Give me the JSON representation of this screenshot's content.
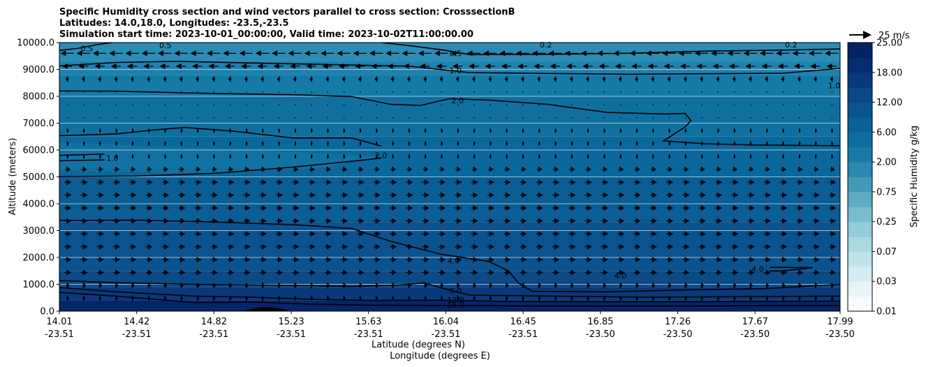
{
  "chart_data": {
    "type": "heatmap",
    "title_lines": [
      "Specific Humidity cross section and wind vectors parallel to cross section: CrosssectionB",
      "Latitudes: 14.0,18.0, Longitudes: -23.5,-23.5",
      "Simulation start time: 2023-10-01_00:00:00, Valid time: 2023-10-02T11:00:00.00"
    ],
    "ylabel": "Altitude (meters)",
    "xlabel_lines": [
      "Latitude (degrees N)",
      "Longitude (degrees E)"
    ],
    "ylim": [
      0,
      10000
    ],
    "y_ticks": [
      "0.0",
      "1000.0",
      "2000.0",
      "3000.0",
      "4000.0",
      "5000.0",
      "6000.0",
      "7000.0",
      "8000.0",
      "9000.0",
      "10000.0"
    ],
    "x_ticks": [
      {
        "lat": "14.01",
        "lon": "-23.51"
      },
      {
        "lat": "14.42",
        "lon": "-23.51"
      },
      {
        "lat": "14.82",
        "lon": "-23.51"
      },
      {
        "lat": "15.23",
        "lon": "-23.51"
      },
      {
        "lat": "15.63",
        "lon": "-23.51"
      },
      {
        "lat": "16.04",
        "lon": "-23.51"
      },
      {
        "lat": "16.45",
        "lon": "-23.51"
      },
      {
        "lat": "16.85",
        "lon": "-23.50"
      },
      {
        "lat": "17.26",
        "lon": "-23.50"
      },
      {
        "lat": "17.67",
        "lon": "-23.50"
      },
      {
        "lat": "17.99",
        "lon": "-23.50"
      }
    ],
    "colorbar": {
      "label": "Specific Humidity g/kg",
      "levels": [
        0.01,
        0.02,
        0.03,
        0.05,
        0.07,
        0.1,
        0.25,
        0.5,
        0.75,
        1.0,
        2.0,
        3.0,
        6.0,
        8.0,
        12.0,
        16.0,
        18.0,
        21.0,
        25.0
      ],
      "tick_labels": [
        "0.01",
        "0.03",
        "0.07",
        "0.25",
        "0.75",
        "2.00",
        "6.00",
        "12.00",
        "18.00",
        "25.00"
      ],
      "colors": [
        "#f7fbfd",
        "#e6f4f7",
        "#d3ecf1",
        "#c0e3ec",
        "#aad8e3",
        "#92cbd9",
        "#79bccf",
        "#5eabc4",
        "#4499b8",
        "#2c88ad",
        "#1a7aa4",
        "#0d6d9c",
        "#0a6196",
        "#0a548e",
        "#0a4785",
        "#083a7a",
        "#062d6f",
        "#052265"
      ]
    },
    "quiver_key": {
      "label": "25 m/s",
      "speed": 25
    },
    "contour_labels": [
      {
        "text": "0.5",
        "lat": 14.15,
        "alt": 9780
      },
      {
        "text": "0.5",
        "lat": 14.55,
        "alt": 9900
      },
      {
        "text": "0.5",
        "lat": 16.03,
        "alt": 9600
      },
      {
        "text": "0.2",
        "lat": 16.49,
        "alt": 9920
      },
      {
        "text": "0.2",
        "lat": 17.74,
        "alt": 9920
      },
      {
        "text": "1.0",
        "lat": 16.03,
        "alt": 8960
      },
      {
        "text": "1.0",
        "lat": 17.96,
        "alt": 8400
      },
      {
        "text": "2.0",
        "lat": 16.04,
        "alt": 7850
      },
      {
        "text": "2.0",
        "lat": 15.65,
        "alt": 5800
      },
      {
        "text": "1.0",
        "lat": 14.28,
        "alt": 5700
      },
      {
        "text": "4.0",
        "lat": 16.02,
        "alt": 1880
      },
      {
        "text": "4.0",
        "lat": 16.87,
        "alt": 1320
      },
      {
        "text": "4.0",
        "lat": 17.57,
        "alt": 1570
      },
      {
        "text": "8.0",
        "lat": 16.03,
        "alt": 760
      },
      {
        "text": "12.0",
        "lat": 16.03,
        "alt": 420
      },
      {
        "text": "16.0",
        "lat": 16.03,
        "alt": 250
      }
    ],
    "contours": [
      {
        "level": 0.5,
        "points": [
          [
            14.01,
            9710
          ],
          [
            14.1,
            9780
          ],
          [
            14.2,
            9920
          ],
          [
            14.28,
            10000
          ]
        ]
      },
      {
        "level": 0.5,
        "points": [
          [
            15.65,
            10000
          ],
          [
            15.8,
            9880
          ],
          [
            15.97,
            9720
          ],
          [
            16.1,
            9550
          ],
          [
            16.5,
            9560
          ],
          [
            16.9,
            9600
          ],
          [
            17.3,
            9680
          ],
          [
            17.7,
            9720
          ],
          [
            17.99,
            9760
          ]
        ]
      },
      {
        "level": 1.0,
        "points": [
          [
            14.01,
            9130
          ],
          [
            14.3,
            9260
          ],
          [
            14.6,
            9300
          ],
          [
            15.0,
            9240
          ],
          [
            15.4,
            9180
          ],
          [
            15.8,
            9120
          ],
          [
            16.1,
            8880
          ],
          [
            16.5,
            8850
          ],
          [
            16.9,
            8820
          ],
          [
            17.3,
            8840
          ],
          [
            17.7,
            8860
          ],
          [
            17.99,
            9040
          ]
        ]
      },
      {
        "level": 2.0,
        "points": [
          [
            14.01,
            8200
          ],
          [
            14.3,
            8190
          ],
          [
            14.8,
            8100
          ],
          [
            15.2,
            8060
          ],
          [
            15.5,
            7990
          ],
          [
            15.7,
            7700
          ],
          [
            15.85,
            7660
          ],
          [
            16.0,
            7910
          ],
          [
            16.2,
            7860
          ],
          [
            16.5,
            7700
          ],
          [
            16.8,
            7400
          ],
          [
            17.1,
            7340
          ],
          [
            17.2,
            7360
          ],
          [
            17.23,
            7100
          ],
          [
            17.2,
            6860
          ],
          [
            17.09,
            6340
          ],
          [
            17.3,
            6230
          ],
          [
            17.6,
            6180
          ],
          [
            17.99,
            6160
          ]
        ]
      },
      {
        "level": 2.0,
        "points": [
          [
            14.01,
            6530
          ],
          [
            14.3,
            6600
          ],
          [
            14.5,
            6750
          ],
          [
            14.65,
            6840
          ],
          [
            14.9,
            6700
          ],
          [
            15.2,
            6450
          ],
          [
            15.5,
            6450
          ],
          [
            15.65,
            6150
          ]
        ]
      },
      {
        "level": 1.0,
        "points": [
          [
            14.01,
            5800
          ],
          [
            14.24,
            5850
          ]
        ]
      },
      {
        "level": 1.0,
        "points": [
          [
            14.01,
            5600
          ],
          [
            14.24,
            5630
          ]
        ]
      },
      {
        "level": 4.0,
        "points": [
          [
            14.01,
            5010
          ],
          [
            14.4,
            5030
          ],
          [
            14.8,
            5130
          ],
          [
            15.2,
            5360
          ],
          [
            15.5,
            5580
          ],
          [
            15.65,
            5700
          ]
        ]
      },
      {
        "level": 4.0,
        "points": [
          [
            14.01,
            3380
          ],
          [
            14.4,
            3390
          ],
          [
            14.8,
            3320
          ],
          [
            15.2,
            3220
          ],
          [
            15.5,
            3080
          ],
          [
            15.7,
            2600
          ],
          [
            15.95,
            2130
          ],
          [
            16.2,
            1850
          ],
          [
            16.3,
            1500
          ],
          [
            16.35,
            1050
          ],
          [
            16.42,
            740
          ],
          [
            16.8,
            720
          ],
          [
            17.2,
            790
          ],
          [
            17.6,
            840
          ],
          [
            17.99,
            1000
          ]
        ]
      },
      {
        "level": 4.0,
        "points": [
          [
            17.63,
            1630
          ],
          [
            17.85,
            1620
          ],
          [
            17.7,
            1500
          ],
          [
            17.63,
            1500
          ]
        ]
      },
      {
        "level": 8.0,
        "points": [
          [
            14.01,
            1140
          ],
          [
            14.3,
            1060
          ],
          [
            14.7,
            1000
          ],
          [
            15.0,
            980
          ],
          [
            15.3,
            950
          ],
          [
            15.5,
            920
          ],
          [
            15.75,
            980
          ],
          [
            15.87,
            1050
          ],
          [
            15.95,
            880
          ],
          [
            16.1,
            600
          ],
          [
            16.5,
            560
          ],
          [
            17.0,
            520
          ],
          [
            17.5,
            540
          ],
          [
            17.99,
            560
          ]
        ]
      },
      {
        "level": 12.0,
        "points": [
          [
            14.01,
            880
          ],
          [
            14.3,
            720
          ],
          [
            14.7,
            560
          ],
          [
            15.0,
            520
          ],
          [
            15.3,
            440
          ],
          [
            15.6,
            400
          ],
          [
            15.95,
            410
          ],
          [
            16.3,
            360
          ],
          [
            16.8,
            350
          ],
          [
            17.3,
            350
          ],
          [
            17.99,
            380
          ]
        ]
      },
      {
        "level": 16.0,
        "points": [
          [
            14.01,
            700
          ],
          [
            14.3,
            560
          ],
          [
            14.7,
            320
          ],
          [
            15.0,
            340
          ],
          [
            15.3,
            260
          ],
          [
            15.6,
            220
          ],
          [
            16.0,
            210
          ],
          [
            16.5,
            190
          ],
          [
            17.0,
            190
          ],
          [
            17.5,
            200
          ],
          [
            17.99,
            210
          ]
        ]
      }
    ],
    "terrain_peak": {
      "lat": 15.07,
      "alt": 200
    }
  }
}
